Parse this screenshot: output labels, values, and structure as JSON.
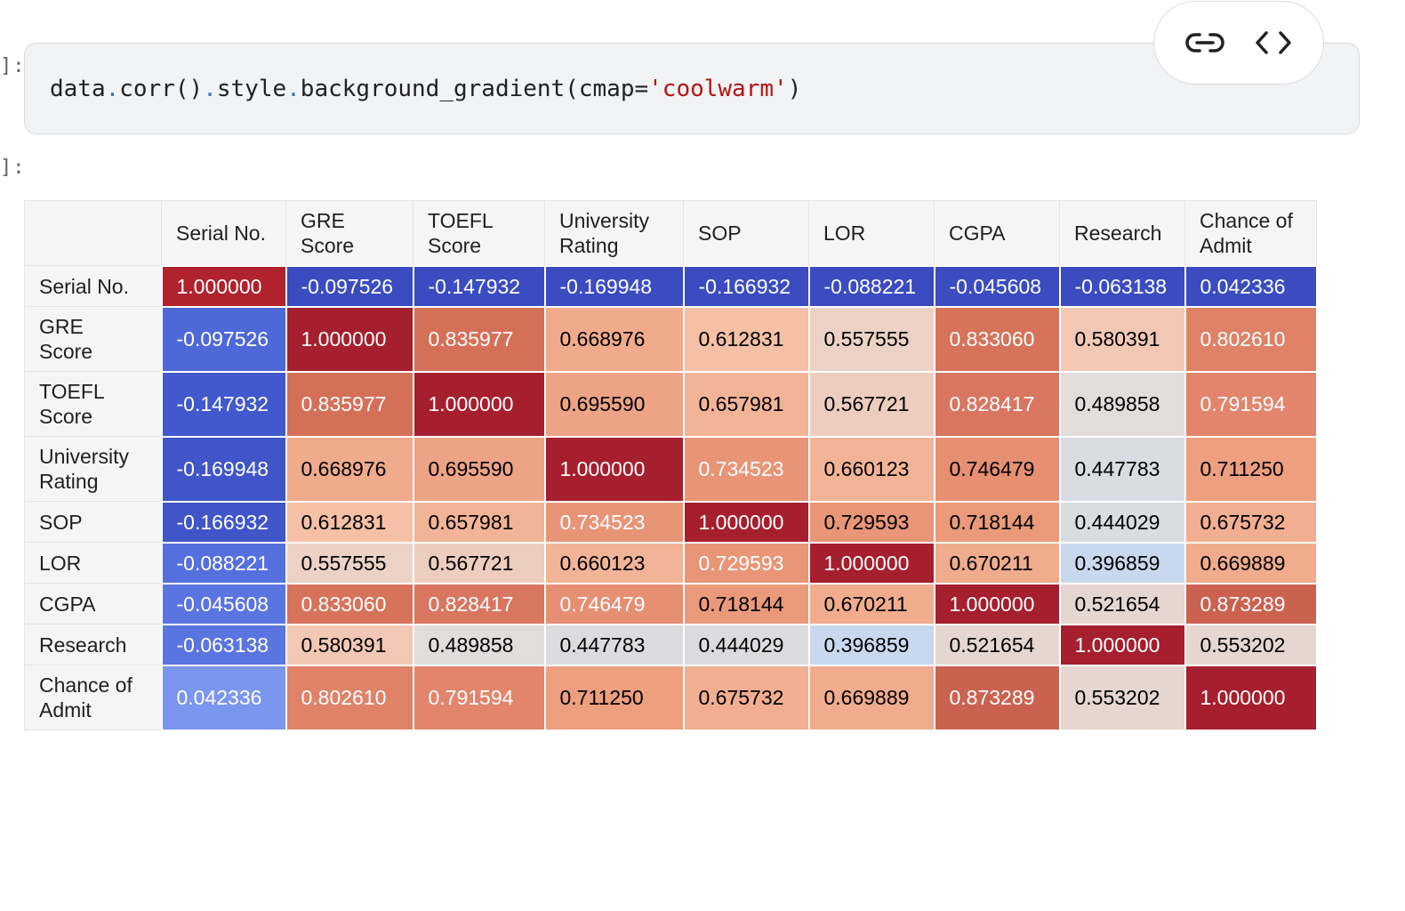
{
  "code_cell": {
    "prompt": "]:",
    "code_tokens": [
      {
        "t": "data",
        "k": "n"
      },
      {
        "t": ".",
        "k": "dot"
      },
      {
        "t": "corr()",
        "k": "n"
      },
      {
        "t": ".",
        "k": "dot"
      },
      {
        "t": "style",
        "k": "n"
      },
      {
        "t": ".",
        "k": "dot"
      },
      {
        "t": "background_gradient(cmap=",
        "k": "n"
      },
      {
        "t": "'coolwarm'",
        "k": "str"
      },
      {
        "t": ")",
        "k": "n"
      }
    ],
    "toolbar": {
      "link_icon": "link-icon",
      "code_icon": "code-brackets-icon"
    }
  },
  "output_cell": {
    "prompt": "]:"
  },
  "table": {
    "columns": [
      "Serial No.",
      "GRE\nScore",
      "TOEFL\nScore",
      "University\nRating",
      "SOP",
      "LOR",
      "CGPA",
      "Research",
      "Chance of\nAdmit"
    ],
    "rows": [
      {
        "label": "Serial No.",
        "cells": [
          {
            "v": "1.000000",
            "bg": "#b0222c",
            "fg": "#ffffff"
          },
          {
            "v": "-0.097526",
            "bg": "#3b4cc0",
            "fg": "#ffffff"
          },
          {
            "v": "-0.147932",
            "bg": "#3b4cc0",
            "fg": "#ffffff"
          },
          {
            "v": "-0.169948",
            "bg": "#3b4cc0",
            "fg": "#ffffff"
          },
          {
            "v": "-0.166932",
            "bg": "#3b4cc0",
            "fg": "#ffffff"
          },
          {
            "v": "-0.088221",
            "bg": "#3b4cc0",
            "fg": "#ffffff"
          },
          {
            "v": "-0.045608",
            "bg": "#3b4cc0",
            "fg": "#ffffff"
          },
          {
            "v": "-0.063138",
            "bg": "#3b4cc0",
            "fg": "#ffffff"
          },
          {
            "v": "0.042336",
            "bg": "#3b4cc0",
            "fg": "#ffffff"
          }
        ]
      },
      {
        "label": "GRE\nScore",
        "cells": [
          {
            "v": "-0.097526",
            "bg": "#4e68d8",
            "fg": "#ffffff"
          },
          {
            "v": "1.000000",
            "bg": "#a61f2e",
            "fg": "#ffffff"
          },
          {
            "v": "0.835977",
            "bg": "#d57058",
            "fg": "#ffffff"
          },
          {
            "v": "0.668976",
            "bg": "#f0ab8c",
            "fg": "#000000"
          },
          {
            "v": "0.612831",
            "bg": "#f5c0a6",
            "fg": "#000000"
          },
          {
            "v": "0.557555",
            "bg": "#ecd2c4",
            "fg": "#000000"
          },
          {
            "v": "0.833060",
            "bg": "#d6735a",
            "fg": "#ffffff"
          },
          {
            "v": "0.580391",
            "bg": "#f2c8b4",
            "fg": "#000000"
          },
          {
            "v": "0.802610",
            "bg": "#df8268",
            "fg": "#ffffff"
          }
        ]
      },
      {
        "label": "TOEFL\nScore",
        "cells": [
          {
            "v": "-0.147932",
            "bg": "#4159cc",
            "fg": "#ffffff"
          },
          {
            "v": "0.835977",
            "bg": "#d57058",
            "fg": "#ffffff"
          },
          {
            "v": "1.000000",
            "bg": "#a61f2e",
            "fg": "#ffffff"
          },
          {
            "v": "0.695590",
            "bg": "#eda385",
            "fg": "#000000"
          },
          {
            "v": "0.657981",
            "bg": "#f2b497",
            "fg": "#000000"
          },
          {
            "v": "0.567721",
            "bg": "#edcdbd",
            "fg": "#000000"
          },
          {
            "v": "0.828417",
            "bg": "#d87660",
            "fg": "#ffffff"
          },
          {
            "v": "0.489858",
            "bg": "#e2dcdc",
            "fg": "#000000"
          },
          {
            "v": "0.791594",
            "bg": "#e2856c",
            "fg": "#ffffff"
          }
        ]
      },
      {
        "label": "University\nRating",
        "cells": [
          {
            "v": "-0.169948",
            "bg": "#3f55c8",
            "fg": "#ffffff"
          },
          {
            "v": "0.668976",
            "bg": "#f0ab8c",
            "fg": "#000000"
          },
          {
            "v": "0.695590",
            "bg": "#eda385",
            "fg": "#000000"
          },
          {
            "v": "1.000000",
            "bg": "#a61f2e",
            "fg": "#ffffff"
          },
          {
            "v": "0.734523",
            "bg": "#e89577",
            "fg": "#ffffff"
          },
          {
            "v": "0.660123",
            "bg": "#f2b497",
            "fg": "#000000"
          },
          {
            "v": "0.746479",
            "bg": "#e68f72",
            "fg": "#000000"
          },
          {
            "v": "0.447783",
            "bg": "#d9dce2",
            "fg": "#000000"
          },
          {
            "v": "0.711250",
            "bg": "#ed9f80",
            "fg": "#000000"
          }
        ]
      },
      {
        "label": "SOP",
        "cells": [
          {
            "v": "-0.166932",
            "bg": "#3f55c8",
            "fg": "#ffffff"
          },
          {
            "v": "0.612831",
            "bg": "#f5c0a6",
            "fg": "#000000"
          },
          {
            "v": "0.657981",
            "bg": "#f2b497",
            "fg": "#000000"
          },
          {
            "v": "0.734523",
            "bg": "#e89577",
            "fg": "#ffffff"
          },
          {
            "v": "1.000000",
            "bg": "#a61f2e",
            "fg": "#ffffff"
          },
          {
            "v": "0.729593",
            "bg": "#e89677",
            "fg": "#000000"
          },
          {
            "v": "0.718144",
            "bg": "#ea9a7b",
            "fg": "#000000"
          },
          {
            "v": "0.444029",
            "bg": "#d9dce2",
            "fg": "#000000"
          },
          {
            "v": "0.675732",
            "bg": "#f1ae90",
            "fg": "#000000"
          }
        ]
      },
      {
        "label": "LOR",
        "cells": [
          {
            "v": "-0.088221",
            "bg": "#5570dd",
            "fg": "#ffffff"
          },
          {
            "v": "0.557555",
            "bg": "#ecd2c4",
            "fg": "#000000"
          },
          {
            "v": "0.567721",
            "bg": "#edcdbd",
            "fg": "#000000"
          },
          {
            "v": "0.660123",
            "bg": "#f2b497",
            "fg": "#000000"
          },
          {
            "v": "0.729593",
            "bg": "#e89677",
            "fg": "#ffffff"
          },
          {
            "v": "1.000000",
            "bg": "#a61f2e",
            "fg": "#ffffff"
          },
          {
            "v": "0.670211",
            "bg": "#f0ac8c",
            "fg": "#000000"
          },
          {
            "v": "0.396859",
            "bg": "#cad8ef",
            "fg": "#000000"
          },
          {
            "v": "0.669889",
            "bg": "#f0ac8c",
            "fg": "#000000"
          }
        ]
      },
      {
        "label": "CGPA",
        "cells": [
          {
            "v": "-0.045608",
            "bg": "#5a75e0",
            "fg": "#ffffff"
          },
          {
            "v": "0.833060",
            "bg": "#d6735a",
            "fg": "#ffffff"
          },
          {
            "v": "0.828417",
            "bg": "#d87660",
            "fg": "#ffffff"
          },
          {
            "v": "0.746479",
            "bg": "#e68f72",
            "fg": "#ffffff"
          },
          {
            "v": "0.718144",
            "bg": "#ea9a7b",
            "fg": "#000000"
          },
          {
            "v": "0.670211",
            "bg": "#f0ac8c",
            "fg": "#000000"
          },
          {
            "v": "1.000000",
            "bg": "#a61f2e",
            "fg": "#ffffff"
          },
          {
            "v": "0.521654",
            "bg": "#e6d6d0",
            "fg": "#000000"
          },
          {
            "v": "0.873289",
            "bg": "#cb6250",
            "fg": "#ffffff"
          }
        ]
      },
      {
        "label": "Research",
        "cells": [
          {
            "v": "-0.063138",
            "bg": "#5a75e0",
            "fg": "#ffffff"
          },
          {
            "v": "0.580391",
            "bg": "#f2c8b4",
            "fg": "#000000"
          },
          {
            "v": "0.489858",
            "bg": "#e2dcdc",
            "fg": "#000000"
          },
          {
            "v": "0.447783",
            "bg": "#dcdcdf",
            "fg": "#000000"
          },
          {
            "v": "0.444029",
            "bg": "#dcdcdf",
            "fg": "#000000"
          },
          {
            "v": "0.396859",
            "bg": "#cad8ef",
            "fg": "#000000"
          },
          {
            "v": "0.521654",
            "bg": "#e6d6d0",
            "fg": "#000000"
          },
          {
            "v": "1.000000",
            "bg": "#a61f2e",
            "fg": "#ffffff"
          },
          {
            "v": "0.553202",
            "bg": "#e6d6d0",
            "fg": "#000000"
          }
        ]
      },
      {
        "label": "Chance of\nAdmit",
        "cells": [
          {
            "v": "0.042336",
            "bg": "#7a96ee",
            "fg": "#ffffff"
          },
          {
            "v": "0.802610",
            "bg": "#df8268",
            "fg": "#ffffff"
          },
          {
            "v": "0.791594",
            "bg": "#e2856c",
            "fg": "#ffffff"
          },
          {
            "v": "0.711250",
            "bg": "#ed9f80",
            "fg": "#000000"
          },
          {
            "v": "0.675732",
            "bg": "#f1ae90",
            "fg": "#000000"
          },
          {
            "v": "0.669889",
            "bg": "#f0ac8c",
            "fg": "#000000"
          },
          {
            "v": "0.873289",
            "bg": "#cb6250",
            "fg": "#ffffff"
          },
          {
            "v": "0.553202",
            "bg": "#e6d6d0",
            "fg": "#000000"
          },
          {
            "v": "1.000000",
            "bg": "#a61f2e",
            "fg": "#ffffff"
          }
        ]
      }
    ]
  }
}
